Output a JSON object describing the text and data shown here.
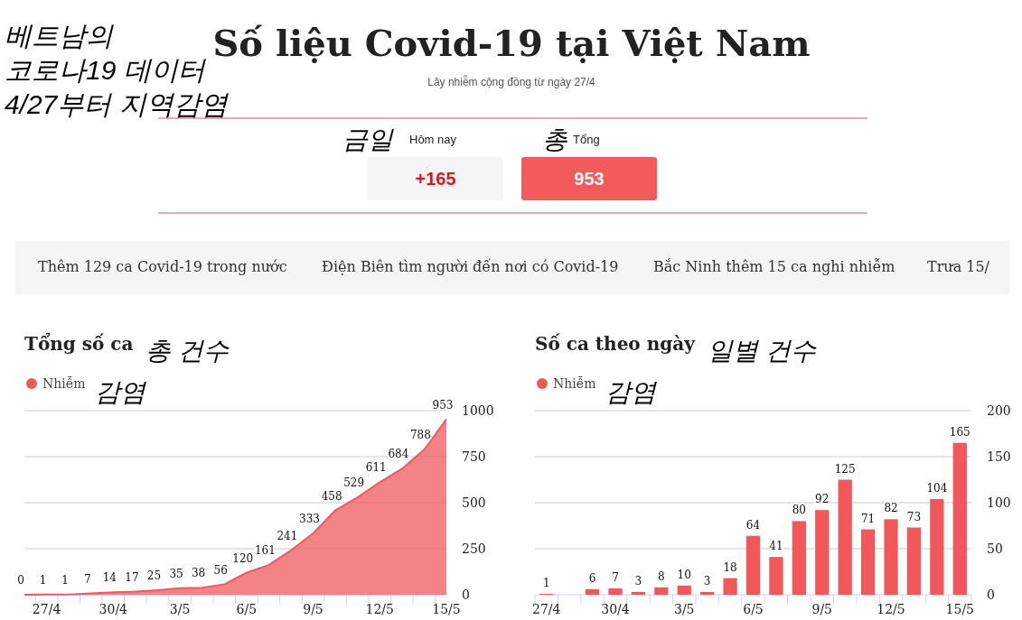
{
  "chart_data": [
    {
      "type": "other",
      "title": "Số liệu Covid-19 tại Việt Nam",
      "subtitle": "Lây nhiễm cộng đồng từ ngày 27/4",
      "annotations": [
        "베트남의",
        "코로나19 데이터",
        "4/27부터 지역감염",
        "금일",
        "Hôm nay",
        "+165",
        "총",
        "Tổng",
        "953",
        "Thêm 129 ca Covid-19 trong nước",
        "Điện Biên tìm người đến nơi có Covid-19",
        "Bắc Ninh thêm 15 ca nghi nhiễm",
        "Trưa 15/"
      ]
    },
    {
      "type": "area",
      "title": "Tổng số ca",
      "annotations": [
        "총 건수",
        "감염"
      ],
      "categories": [
        null,
        "27/4",
        null,
        null,
        "30/4",
        null,
        null,
        "3/5",
        null,
        null,
        "6/5",
        null,
        null,
        "9/5",
        null,
        null,
        "12/5",
        null,
        null,
        "15/5"
      ],
      "series": [
        {
          "name": "Nhiễm",
          "color": "#f05a5e",
          "values": [
            0,
            1,
            1,
            7,
            14,
            17,
            25,
            35,
            38,
            56,
            120,
            161,
            241,
            333,
            458,
            529,
            611,
            684,
            788,
            953
          ]
        }
      ],
      "ylim": [
        0,
        1000
      ],
      "yticks": [
        0,
        250,
        500,
        750,
        1000
      ],
      "grid": "y",
      "legend": "top left",
      "data_labels": true
    },
    {
      "type": "bar",
      "title": "Số ca theo ngày",
      "annotations": [
        "일별 건수",
        "감염"
      ],
      "categories": [
        "27/4",
        null,
        null,
        "30/4",
        null,
        null,
        "3/5",
        null,
        null,
        "6/5",
        null,
        null,
        "9/5",
        null,
        null,
        "12/5",
        null,
        null,
        "15/5"
      ],
      "series": [
        {
          "name": "Nhiễm",
          "color": "#f2575a",
          "values": [
            1,
            0,
            6,
            7,
            3,
            8,
            10,
            3,
            18,
            64,
            41,
            80,
            92,
            125,
            71,
            82,
            73,
            104,
            165
          ],
          "value_labels": [
            "1",
            null,
            "6",
            "7",
            "3",
            "8",
            "10",
            "3",
            "18",
            "64",
            "41",
            "80",
            "92",
            "125",
            "71",
            "82",
            "73",
            "104",
            "165"
          ]
        }
      ],
      "ylim": [
        0,
        200
      ],
      "yticks": [
        0,
        50,
        100,
        150,
        200
      ],
      "grid": "y",
      "legend": "top left"
    }
  ]
}
